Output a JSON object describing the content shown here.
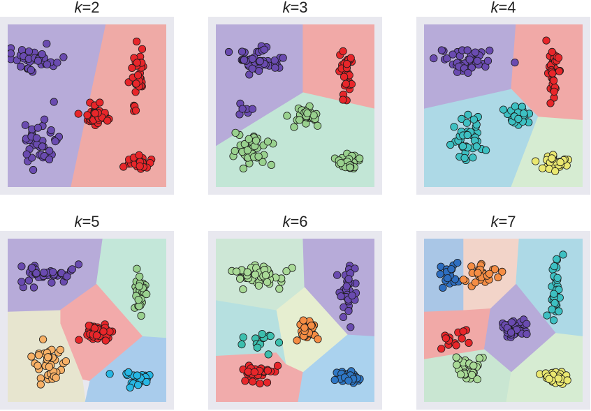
{
  "figure": {
    "description_note": "",
    "panel_bg": "#e8e8ef"
  },
  "chart_data": [
    {
      "type": "scatter",
      "title": "k=2",
      "title_var": "k",
      "title_value": "=2",
      "clusters": [
        {
          "color": "#6a4bb0",
          "region": "#b7abd9",
          "seed": 11,
          "n": 42,
          "cx": 0.17,
          "cy": 0.22,
          "sx": 0.12,
          "sy": 0.05
        },
        {
          "color": "#6a4bb0",
          "region": "#b7abd9",
          "seed": 12,
          "n": 40,
          "cx": 0.22,
          "cy": 0.72,
          "sx": 0.09,
          "sy": 0.12
        },
        {
          "color": "#e8262a",
          "region": "#efaaa6",
          "seed": 13,
          "n": 32,
          "cx": 0.82,
          "cy": 0.3,
          "sx": 0.03,
          "sy": 0.12
        },
        {
          "color": "#e8262a",
          "region": "#efaaa6",
          "seed": 14,
          "n": 38,
          "cx": 0.57,
          "cy": 0.56,
          "sx": 0.06,
          "sy": 0.04
        },
        {
          "color": "#e8262a",
          "region": "#efaaa6",
          "seed": 15,
          "n": 35,
          "cx": 0.83,
          "cy": 0.85,
          "sx": 0.06,
          "sy": 0.03
        }
      ],
      "regions": [
        {
          "color": "#b7abd9",
          "points": [
            [
              0,
              0
            ],
            [
              0.62,
              0
            ],
            [
              0.4,
              1
            ],
            [
              0,
              1
            ]
          ]
        },
        {
          "color": "#efaaa6",
          "points": [
            [
              0.62,
              0
            ],
            [
              1,
              0
            ],
            [
              1,
              1
            ],
            [
              0.4,
              1
            ]
          ]
        }
      ]
    },
    {
      "type": "scatter",
      "title": "k=3",
      "title_var": "k",
      "title_value": "=3",
      "clusters": [
        {
          "color": "#6a4bb0",
          "region": "#b7abd9",
          "seed": 21,
          "n": 42,
          "cx": 0.27,
          "cy": 0.22,
          "sx": 0.12,
          "sy": 0.05
        },
        {
          "color": "#6a4bb0",
          "region": "#b7abd9",
          "seed": 22,
          "n": 6,
          "cx": 0.16,
          "cy": 0.52,
          "sx": 0.05,
          "sy": 0.03
        },
        {
          "color": "#e8262a",
          "region": "#f1a9a7",
          "seed": 23,
          "n": 32,
          "cx": 0.82,
          "cy": 0.3,
          "sx": 0.03,
          "sy": 0.12
        },
        {
          "color": "#99d18e",
          "region": "#c2e6d6",
          "seed": 24,
          "n": 38,
          "cx": 0.57,
          "cy": 0.56,
          "sx": 0.06,
          "sy": 0.04
        },
        {
          "color": "#99d18e",
          "region": "#c2e6d6",
          "seed": 25,
          "n": 35,
          "cx": 0.24,
          "cy": 0.76,
          "sx": 0.09,
          "sy": 0.08
        },
        {
          "color": "#99d18e",
          "region": "#c2e6d6",
          "seed": 26,
          "n": 30,
          "cx": 0.83,
          "cy": 0.85,
          "sx": 0.06,
          "sy": 0.03
        }
      ],
      "regions": [
        {
          "color": "#b7abd9",
          "points": [
            [
              0,
              0
            ],
            [
              0.55,
              0
            ],
            [
              0.55,
              0.42
            ],
            [
              0,
              0.75
            ]
          ]
        },
        {
          "color": "#f1a9a7",
          "points": [
            [
              0.55,
              0
            ],
            [
              1,
              0
            ],
            [
              1,
              0.52
            ],
            [
              0.55,
              0.42
            ]
          ]
        },
        {
          "color": "#c2e6d6",
          "points": [
            [
              0,
              0.75
            ],
            [
              0.55,
              0.42
            ],
            [
              1,
              0.52
            ],
            [
              1,
              1
            ],
            [
              0,
              1
            ]
          ]
        }
      ]
    },
    {
      "type": "scatter",
      "title": "k=4",
      "title_var": "k",
      "title_value": "=4",
      "clusters": [
        {
          "color": "#6a4bb0",
          "region": "#b7abd9",
          "seed": 31,
          "n": 42,
          "cx": 0.27,
          "cy": 0.22,
          "sx": 0.12,
          "sy": 0.05
        },
        {
          "color": "#e8262a",
          "region": "#f1a9a7",
          "seed": 32,
          "n": 32,
          "cx": 0.82,
          "cy": 0.3,
          "sx": 0.03,
          "sy": 0.12
        },
        {
          "color": "#3dc0c2",
          "region": "#add9e6",
          "seed": 33,
          "n": 30,
          "cx": 0.58,
          "cy": 0.56,
          "sx": 0.06,
          "sy": 0.04
        },
        {
          "color": "#3dc0c2",
          "region": "#add9e6",
          "seed": 34,
          "n": 40,
          "cx": 0.28,
          "cy": 0.7,
          "sx": 0.09,
          "sy": 0.1
        },
        {
          "color": "#eae870",
          "region": "#d6ecd2",
          "seed": 35,
          "n": 30,
          "cx": 0.83,
          "cy": 0.85,
          "sx": 0.06,
          "sy": 0.03
        }
      ],
      "regions": [
        {
          "color": "#b7abd9",
          "points": [
            [
              0,
              0
            ],
            [
              0.58,
              0
            ],
            [
              0.55,
              0.4
            ],
            [
              0,
              0.52
            ]
          ]
        },
        {
          "color": "#f1a9a7",
          "points": [
            [
              0.58,
              0
            ],
            [
              1,
              0
            ],
            [
              1,
              0.59
            ],
            [
              0.72,
              0.57
            ],
            [
              0.55,
              0.4
            ]
          ]
        },
        {
          "color": "#add9e6",
          "points": [
            [
              0,
              0.52
            ],
            [
              0.55,
              0.4
            ],
            [
              0.72,
              0.57
            ],
            [
              0.55,
              1
            ],
            [
              0,
              1
            ]
          ]
        },
        {
          "color": "#d6ecd2",
          "points": [
            [
              0.72,
              0.57
            ],
            [
              1,
              0.59
            ],
            [
              1,
              1
            ],
            [
              0.55,
              1
            ]
          ]
        }
      ]
    },
    {
      "type": "scatter",
      "title": "k=5",
      "title_var": "k",
      "title_value": "=5",
      "clusters": [
        {
          "color": "#6a4bb0",
          "region": "#b7abd9",
          "seed": 41,
          "n": 42,
          "cx": 0.27,
          "cy": 0.22,
          "sx": 0.12,
          "sy": 0.05
        },
        {
          "color": "#99d18e",
          "region": "#c3e7d9",
          "seed": 42,
          "n": 32,
          "cx": 0.83,
          "cy": 0.32,
          "sx": 0.03,
          "sy": 0.12
        },
        {
          "color": "#e8262a",
          "region": "#f2aaaa",
          "seed": 43,
          "n": 38,
          "cx": 0.58,
          "cy": 0.56,
          "sx": 0.06,
          "sy": 0.04
        },
        {
          "color": "#f7b066",
          "region": "#e7e5cf",
          "seed": 44,
          "n": 40,
          "cx": 0.25,
          "cy": 0.75,
          "sx": 0.09,
          "sy": 0.1
        },
        {
          "color": "#27b7e4",
          "region": "#a9ccec",
          "seed": 45,
          "n": 30,
          "cx": 0.83,
          "cy": 0.85,
          "sx": 0.06,
          "sy": 0.03
        }
      ],
      "regions": [
        {
          "color": "#b7abd9",
          "points": [
            [
              0,
              0
            ],
            [
              0.6,
              0
            ],
            [
              0.56,
              0.28
            ],
            [
              0.33,
              0.44
            ],
            [
              0,
              0.45
            ]
          ]
        },
        {
          "color": "#c3e7d9",
          "points": [
            [
              0.6,
              0
            ],
            [
              1,
              0
            ],
            [
              1,
              0.61
            ],
            [
              0.85,
              0.6
            ],
            [
              0.56,
              0.28
            ]
          ]
        },
        {
          "color": "#f2aaaa",
          "points": [
            [
              0.33,
              0.44
            ],
            [
              0.56,
              0.28
            ],
            [
              0.85,
              0.6
            ],
            [
              0.52,
              0.87
            ],
            [
              0.47,
              0.86
            ],
            [
              0.33,
              0.52
            ]
          ]
        },
        {
          "color": "#e7e5cf",
          "points": [
            [
              0,
              0.45
            ],
            [
              0.33,
              0.44
            ],
            [
              0.33,
              0.52
            ],
            [
              0.47,
              0.86
            ],
            [
              0.49,
              1
            ],
            [
              0,
              1
            ]
          ]
        },
        {
          "color": "#a9ccec",
          "points": [
            [
              0.85,
              0.6
            ],
            [
              1,
              0.61
            ],
            [
              1,
              1
            ],
            [
              0.49,
              1
            ],
            [
              0.52,
              0.87
            ]
          ]
        }
      ]
    },
    {
      "type": "scatter",
      "title": "k=6",
      "title_var": "k",
      "title_value": "=6",
      "clusters": [
        {
          "color": "#a9da97",
          "region": "#cde7d6",
          "seed": 51,
          "n": 44,
          "cx": 0.28,
          "cy": 0.22,
          "sx": 0.14,
          "sy": 0.05
        },
        {
          "color": "#6a4bb0",
          "region": "#b7abd9",
          "seed": 52,
          "n": 32,
          "cx": 0.83,
          "cy": 0.32,
          "sx": 0.03,
          "sy": 0.12
        },
        {
          "color": "#f58d44",
          "region": "#e6eed0",
          "seed": 53,
          "n": 38,
          "cx": 0.57,
          "cy": 0.56,
          "sx": 0.06,
          "sy": 0.04
        },
        {
          "color": "#3cbfae",
          "region": "#b6e0e0",
          "seed": 54,
          "n": 14,
          "cx": 0.25,
          "cy": 0.62,
          "sx": 0.09,
          "sy": 0.05
        },
        {
          "color": "#e8262a",
          "region": "#f1abab",
          "seed": 55,
          "n": 30,
          "cx": 0.25,
          "cy": 0.82,
          "sx": 0.07,
          "sy": 0.05
        },
        {
          "color": "#2e77c5",
          "region": "#aad2ee",
          "seed": 56,
          "n": 30,
          "cx": 0.83,
          "cy": 0.85,
          "sx": 0.06,
          "sy": 0.03
        }
      ],
      "regions": [
        {
          "color": "#cde7d6",
          "points": [
            [
              0,
              0
            ],
            [
              0.55,
              0
            ],
            [
              0.56,
              0.3
            ],
            [
              0.38,
              0.44
            ],
            [
              0,
              0.38
            ]
          ]
        },
        {
          "color": "#b7abd9",
          "points": [
            [
              0.55,
              0
            ],
            [
              1,
              0
            ],
            [
              1,
              0.6
            ],
            [
              0.83,
              0.59
            ],
            [
              0.56,
              0.3
            ]
          ]
        },
        {
          "color": "#e6eed0",
          "points": [
            [
              0.38,
              0.44
            ],
            [
              0.56,
              0.3
            ],
            [
              0.83,
              0.59
            ],
            [
              0.55,
              0.82
            ],
            [
              0.44,
              0.77
            ]
          ]
        },
        {
          "color": "#b6e0e0",
          "points": [
            [
              0,
              0.38
            ],
            [
              0.38,
              0.44
            ],
            [
              0.44,
              0.77
            ],
            [
              0.38,
              0.7
            ],
            [
              0,
              0.72
            ]
          ]
        },
        {
          "color": "#f1abab",
          "points": [
            [
              0,
              0.72
            ],
            [
              0.38,
              0.7
            ],
            [
              0.44,
              0.77
            ],
            [
              0.55,
              0.82
            ],
            [
              0.52,
              1
            ],
            [
              0,
              1
            ]
          ]
        },
        {
          "color": "#aad2ee",
          "points": [
            [
              0.83,
              0.59
            ],
            [
              1,
              0.6
            ],
            [
              1,
              1
            ],
            [
              0.52,
              1
            ],
            [
              0.55,
              0.82
            ]
          ]
        }
      ]
    },
    {
      "type": "scatter",
      "title": "k=7",
      "title_var": "k",
      "title_value": "=7",
      "clusters": [
        {
          "color": "#2e6ec0",
          "region": "#a9c6e6",
          "seed": 61,
          "n": 20,
          "cx": 0.17,
          "cy": 0.22,
          "sx": 0.06,
          "sy": 0.05
        },
        {
          "color": "#f58d44",
          "region": "#f2d4c9",
          "seed": 62,
          "n": 24,
          "cx": 0.38,
          "cy": 0.22,
          "sx": 0.07,
          "sy": 0.05
        },
        {
          "color": "#3dc0c2",
          "region": "#add9e6",
          "seed": 63,
          "n": 32,
          "cx": 0.83,
          "cy": 0.32,
          "sx": 0.03,
          "sy": 0.12
        },
        {
          "color": "#e8262a",
          "region": "#f1a9a7",
          "seed": 64,
          "n": 14,
          "cx": 0.2,
          "cy": 0.62,
          "sx": 0.07,
          "sy": 0.05
        },
        {
          "color": "#6a4bb0",
          "region": "#b7abd9",
          "seed": 65,
          "n": 38,
          "cx": 0.57,
          "cy": 0.56,
          "sx": 0.06,
          "sy": 0.04
        },
        {
          "color": "#a9da97",
          "region": "#c9e6d2",
          "seed": 66,
          "n": 28,
          "cx": 0.27,
          "cy": 0.8,
          "sx": 0.07,
          "sy": 0.06
        },
        {
          "color": "#eae870",
          "region": "#d6ecd2",
          "seed": 67,
          "n": 30,
          "cx": 0.83,
          "cy": 0.85,
          "sx": 0.06,
          "sy": 0.03
        }
      ],
      "regions": [
        {
          "color": "#a9c6e6",
          "points": [
            [
              0,
              0
            ],
            [
              0.25,
              0
            ],
            [
              0.25,
              0.44
            ],
            [
              0,
              0.45
            ]
          ]
        },
        {
          "color": "#f2d4c9",
          "points": [
            [
              0.25,
              0
            ],
            [
              0.6,
              0
            ],
            [
              0.58,
              0.28
            ],
            [
              0.42,
              0.43
            ],
            [
              0.25,
              0.44
            ]
          ]
        },
        {
          "color": "#add9e6",
          "points": [
            [
              0.6,
              0
            ],
            [
              1,
              0
            ],
            [
              1,
              0.6
            ],
            [
              0.83,
              0.58
            ],
            [
              0.58,
              0.28
            ]
          ]
        },
        {
          "color": "#f1a9a7",
          "points": [
            [
              0,
              0.45
            ],
            [
              0.25,
              0.44
            ],
            [
              0.42,
              0.43
            ],
            [
              0.38,
              0.68
            ],
            [
              0,
              0.74
            ]
          ]
        },
        {
          "color": "#b7abd9",
          "points": [
            [
              0.42,
              0.43
            ],
            [
              0.58,
              0.28
            ],
            [
              0.83,
              0.58
            ],
            [
              0.55,
              0.82
            ],
            [
              0.38,
              0.68
            ]
          ]
        },
        {
          "color": "#c9e6d2",
          "points": [
            [
              0,
              0.74
            ],
            [
              0.38,
              0.68
            ],
            [
              0.55,
              0.82
            ],
            [
              0.52,
              1
            ],
            [
              0,
              1
            ]
          ]
        },
        {
          "color": "#d6ecd2",
          "points": [
            [
              0.83,
              0.58
            ],
            [
              1,
              0.6
            ],
            [
              1,
              1
            ],
            [
              0.52,
              1
            ],
            [
              0.55,
              0.82
            ]
          ]
        }
      ]
    }
  ]
}
